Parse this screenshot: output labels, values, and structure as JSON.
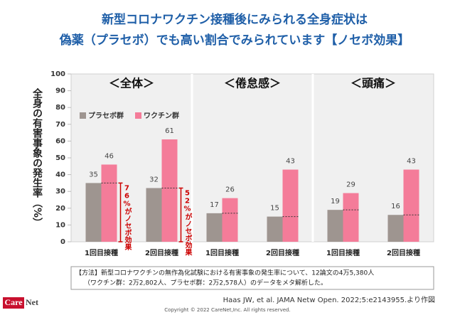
{
  "chart_data": {
    "type": "bar",
    "title": [
      "新型コロナワクチン接種後にみられる全身症状は",
      "偽薬（プラセボ）でも高い割合でみられています【ノセボ効果】"
    ],
    "ylabel": "全身の有害事象の発生率（%）",
    "categories": [
      "1回目接種",
      "2回目接種",
      "1回目接種",
      "2回目接種",
      "1回目接種",
      "2回目接種"
    ],
    "panels": [
      {
        "title": "＜全体＞",
        "annotations": [
          "76%がノセボ効果",
          "52%がノセボ効果"
        ]
      },
      {
        "title": "＜倦怠感＞"
      },
      {
        "title": "＜頭痛＞"
      }
    ],
    "series": [
      {
        "name": "プラセボ群",
        "color": "#9e9590",
        "values": [
          35,
          32,
          17,
          15,
          19,
          16
        ]
      },
      {
        "name": "ワクチン群",
        "color": "#f47c99",
        "values": [
          46,
          61,
          26,
          43,
          29,
          43
        ]
      }
    ],
    "ylim": [
      0,
      100
    ],
    "yticks": [
      0,
      10,
      20,
      30,
      40,
      50,
      60,
      70,
      80,
      90,
      100
    ],
    "note": [
      "【方法】新型コロナワクチンの無作為化試験における有害事象の発生率について、12論文の4万5,380人",
      "（ワクチン群：2万2,802人、プラセボ群：2万2,578人）のデータをメタ解析した。"
    ],
    "source": "Haas JW, et al. JAMA Netw Open. 2022;5:e2143955.より作図",
    "logo": [
      "Care",
      "Net"
    ],
    "copyright": "Copyright © 2022 CareNet,Inc. All rights reserved."
  }
}
